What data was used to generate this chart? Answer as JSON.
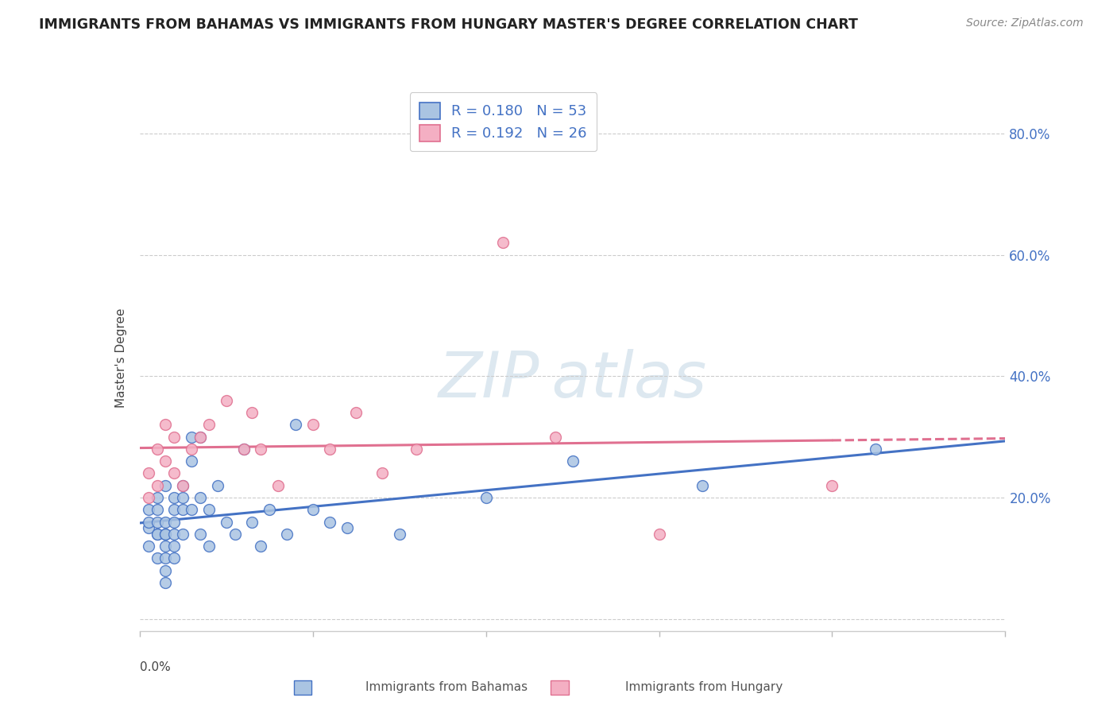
{
  "title": "IMMIGRANTS FROM BAHAMAS VS IMMIGRANTS FROM HUNGARY MASTER'S DEGREE CORRELATION CHART",
  "source": "Source: ZipAtlas.com",
  "ylabel": "Master's Degree",
  "y_ticks": [
    0.0,
    0.2,
    0.4,
    0.6,
    0.8
  ],
  "y_tick_labels": [
    "",
    "20.0%",
    "40.0%",
    "60.0%",
    "80.0%"
  ],
  "x_range": [
    0.0,
    0.1
  ],
  "y_range": [
    -0.02,
    0.88
  ],
  "R_bahamas": 0.18,
  "N_bahamas": 53,
  "R_hungary": 0.192,
  "N_hungary": 26,
  "color_bahamas": "#aac4e2",
  "color_hungary": "#f4afc3",
  "line_color_bahamas": "#4472c4",
  "line_color_hungary": "#e07090",
  "watermark_color": "#dde8f0",
  "bahamas_x": [
    0.001,
    0.001,
    0.001,
    0.001,
    0.002,
    0.002,
    0.002,
    0.002,
    0.002,
    0.002,
    0.003,
    0.003,
    0.003,
    0.003,
    0.003,
    0.003,
    0.003,
    0.003,
    0.004,
    0.004,
    0.004,
    0.004,
    0.004,
    0.004,
    0.005,
    0.005,
    0.005,
    0.005,
    0.006,
    0.006,
    0.006,
    0.007,
    0.007,
    0.007,
    0.008,
    0.008,
    0.009,
    0.01,
    0.011,
    0.012,
    0.013,
    0.014,
    0.015,
    0.017,
    0.018,
    0.02,
    0.022,
    0.024,
    0.03,
    0.04,
    0.05,
    0.065,
    0.085
  ],
  "bahamas_y": [
    0.18,
    0.15,
    0.12,
    0.16,
    0.14,
    0.2,
    0.16,
    0.18,
    0.1,
    0.14,
    0.22,
    0.16,
    0.14,
    0.12,
    0.1,
    0.08,
    0.06,
    0.14,
    0.16,
    0.18,
    0.2,
    0.12,
    0.14,
    0.1,
    0.2,
    0.14,
    0.18,
    0.22,
    0.26,
    0.3,
    0.18,
    0.2,
    0.14,
    0.3,
    0.12,
    0.18,
    0.22,
    0.16,
    0.14,
    0.28,
    0.16,
    0.12,
    0.18,
    0.14,
    0.32,
    0.18,
    0.16,
    0.15,
    0.14,
    0.2,
    0.26,
    0.22,
    0.28
  ],
  "hungary_x": [
    0.001,
    0.001,
    0.002,
    0.002,
    0.003,
    0.003,
    0.004,
    0.004,
    0.005,
    0.006,
    0.007,
    0.008,
    0.01,
    0.012,
    0.013,
    0.014,
    0.016,
    0.02,
    0.022,
    0.025,
    0.028,
    0.032,
    0.042,
    0.048,
    0.06,
    0.08
  ],
  "hungary_y": [
    0.24,
    0.2,
    0.28,
    0.22,
    0.26,
    0.32,
    0.3,
    0.24,
    0.22,
    0.28,
    0.3,
    0.32,
    0.36,
    0.28,
    0.34,
    0.28,
    0.22,
    0.32,
    0.28,
    0.34,
    0.24,
    0.28,
    0.62,
    0.3,
    0.14,
    0.22
  ]
}
